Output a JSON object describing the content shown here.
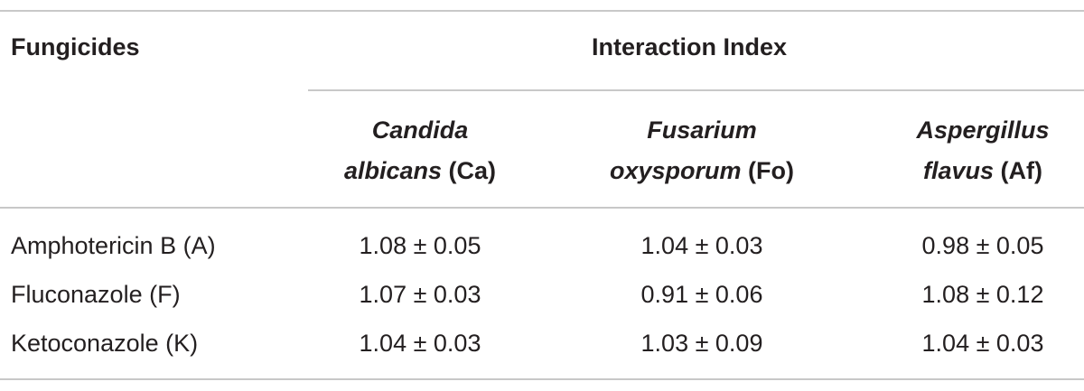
{
  "table": {
    "header": {
      "row_label": "Fungicides",
      "group": "Interaction Index"
    },
    "columns": [
      {
        "genus": "Candida",
        "species": "albicans",
        "abbr": "(Ca)"
      },
      {
        "genus": "Fusarium",
        "species": "oxysporum",
        "abbr": "(Fo)"
      },
      {
        "genus": "Aspergillus",
        "species": "flavus",
        "abbr": "(Af)"
      }
    ],
    "rows": [
      [
        "Amphotericin B (A)",
        "1.08 ± 0.05",
        "1.04 ± 0.03",
        "0.98 ± 0.05"
      ],
      [
        "Fluconazole (F)",
        "1.07 ± 0.03",
        "0.91 ± 0.06",
        "1.08 ± 0.12"
      ],
      [
        "Ketoconazole (K)",
        "1.04 ± 0.03",
        "1.03 ± 0.09",
        "1.04 ± 0.03"
      ]
    ]
  }
}
